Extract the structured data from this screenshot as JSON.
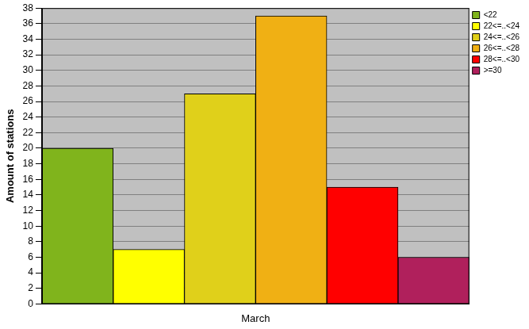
{
  "chart_data": {
    "type": "bar",
    "categories": [
      "March"
    ],
    "series": [
      {
        "name": "<22",
        "color": "#80b41c",
        "values": [
          20
        ]
      },
      {
        "name": "22<=..<24",
        "color": "#ffff00",
        "values": [
          7
        ]
      },
      {
        "name": "24<=..<26",
        "color": "#e0d01a",
        "values": [
          27
        ]
      },
      {
        "name": "26<=..<28",
        "color": "#f0b014",
        "values": [
          37
        ]
      },
      {
        "name": "28<=..<30",
        "color": "#ff0000",
        "values": [
          15
        ]
      },
      {
        "name": ">=30",
        "color": "#b0205c",
        "values": [
          6
        ]
      }
    ],
    "y_label": "Amount of stations",
    "ylim": [
      0,
      38
    ],
    "yticks": [
      0,
      2,
      4,
      6,
      8,
      10,
      12,
      14,
      16,
      18,
      20,
      22,
      24,
      26,
      28,
      30,
      32,
      34,
      36,
      38
    ],
    "grid": true,
    "legend": "upper right"
  }
}
